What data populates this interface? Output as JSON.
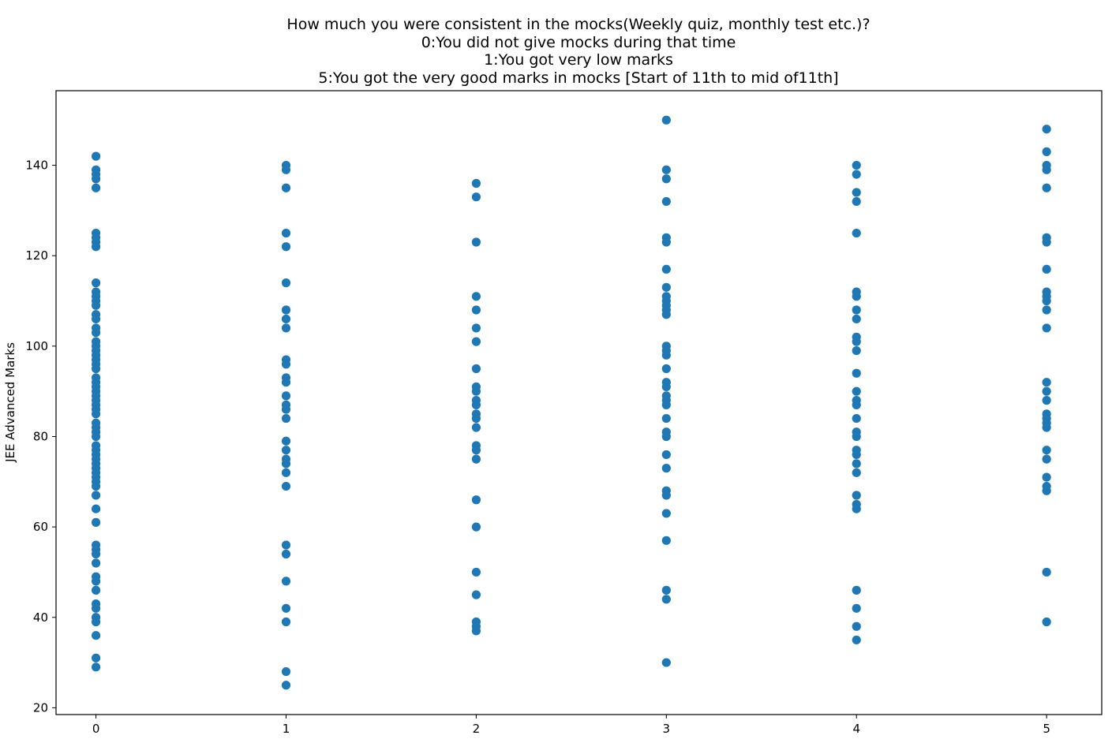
{
  "chart_data": {
    "type": "scatter",
    "title_lines": [
      "How much you were consistent in the mocks(Weekly quiz, monthly test etc.)?",
      "0:You did not give mocks during that time",
      "1:You got very low marks",
      "5:You got the very good marks in mocks [Start of 11th to mid of11th]"
    ],
    "xlabel": "",
    "ylabel": "JEE Advanced Marks",
    "xlim": [
      -0.21,
      5.29
    ],
    "ylim": [
      18.5,
      156.5
    ],
    "xticks": [
      0,
      1,
      2,
      3,
      4,
      5
    ],
    "yticks": [
      20,
      40,
      60,
      80,
      100,
      120,
      140
    ],
    "grid": false,
    "marker_color": "#1f77b4",
    "groups": [
      {
        "x": 0,
        "y": [
          142,
          139,
          138,
          137,
          135,
          125,
          124,
          123,
          122,
          114,
          112,
          111,
          110,
          109,
          107,
          106,
          104,
          103,
          101,
          100,
          99,
          98,
          97,
          96,
          95,
          93,
          92,
          91,
          90,
          89,
          88,
          87,
          86,
          85,
          83,
          82,
          81,
          80,
          78,
          77,
          76,
          75,
          74,
          73,
          72,
          71,
          70,
          69,
          67,
          64,
          61,
          56,
          55,
          54,
          52,
          49,
          48,
          46,
          43,
          42,
          40,
          39,
          36,
          31,
          29
        ]
      },
      {
        "x": 1,
        "y": [
          140,
          139,
          135,
          125,
          122,
          114,
          108,
          106,
          104,
          97,
          96,
          93,
          92,
          89,
          87,
          86,
          84,
          79,
          77,
          75,
          74,
          72,
          69,
          56,
          54,
          48,
          42,
          39,
          28,
          25
        ]
      },
      {
        "x": 2,
        "y": [
          136,
          133,
          123,
          111,
          108,
          104,
          101,
          95,
          91,
          90,
          88,
          87,
          85,
          84,
          82,
          78,
          77,
          75,
          66,
          60,
          50,
          45,
          39,
          38,
          37
        ]
      },
      {
        "x": 3,
        "y": [
          150,
          139,
          137,
          132,
          124,
          123,
          117,
          113,
          111,
          110,
          109,
          108,
          107,
          100,
          99,
          98,
          95,
          92,
          91,
          89,
          88,
          87,
          84,
          81,
          80,
          76,
          73,
          68,
          67,
          63,
          57,
          46,
          44,
          30
        ]
      },
      {
        "x": 4,
        "y": [
          140,
          138,
          134,
          132,
          125,
          112,
          111,
          108,
          106,
          102,
          101,
          99,
          94,
          90,
          88,
          87,
          84,
          81,
          80,
          77,
          76,
          74,
          72,
          67,
          65,
          64,
          46,
          42,
          38,
          35
        ]
      },
      {
        "x": 5,
        "y": [
          148,
          143,
          140,
          139,
          135,
          124,
          123,
          117,
          112,
          111,
          110,
          108,
          104,
          92,
          90,
          88,
          85,
          84,
          83,
          82,
          77,
          75,
          71,
          69,
          68,
          50,
          39
        ]
      }
    ]
  }
}
